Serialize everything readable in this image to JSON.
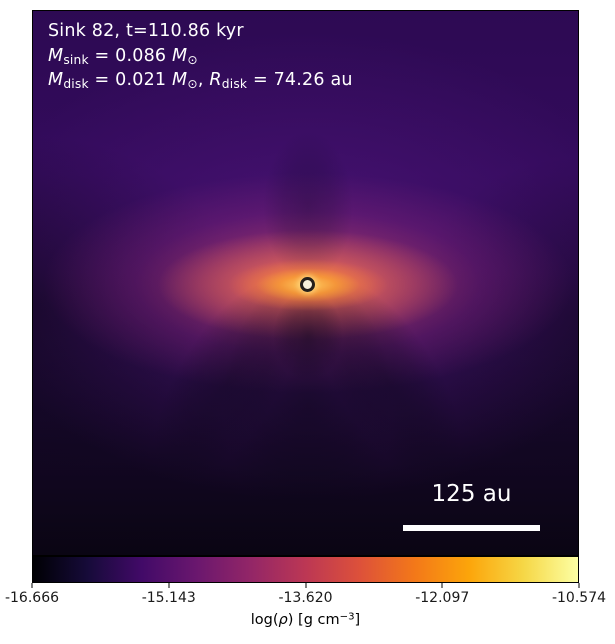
{
  "figure": {
    "background": "#ffffff",
    "kind": "protostellar disk density map with colorbar"
  },
  "map": {
    "annotation": {
      "line1": "Sink 82, t=110.86 kyr",
      "line2": [
        {
          "s": "i",
          "t": "M"
        },
        {
          "s": "sub",
          "t": "sink"
        },
        {
          "s": "n",
          "t": " = 0.086 "
        },
        {
          "s": "i",
          "t": "M"
        },
        {
          "s": "sub",
          "t": "⊙"
        }
      ],
      "line3": [
        {
          "s": "i",
          "t": "M"
        },
        {
          "s": "sub",
          "t": "disk"
        },
        {
          "s": "n",
          "t": " = 0.021 "
        },
        {
          "s": "i",
          "t": "M"
        },
        {
          "s": "sub",
          "t": "⊙"
        },
        {
          "s": "n",
          "t": ",  "
        },
        {
          "s": "i",
          "t": "R"
        },
        {
          "s": "sub",
          "t": "disk"
        },
        {
          "s": "n",
          "t": " = 74.26 au"
        }
      ]
    },
    "scalebar": {
      "label": "125 au"
    },
    "sink_marker": {
      "fill": "#f8f1da",
      "ring": "#24201b"
    }
  },
  "colorbar": {
    "ticks": [
      "-16.666",
      "-15.143",
      "-13.620",
      "-12.097",
      "-10.574"
    ],
    "tick_positions_pct": [
      0,
      25,
      50,
      75,
      100
    ],
    "label": [
      {
        "s": "n",
        "t": "log("
      },
      {
        "s": "i",
        "t": "ρ"
      },
      {
        "s": "n",
        "t": ") [g cm"
      },
      {
        "s": "sup",
        "t": "−3"
      },
      {
        "s": "n",
        "t": "]"
      }
    ],
    "colormap": "inferno",
    "gradient": [
      "#000004",
      "#160b39",
      "#420a68",
      "#6a176e",
      "#932667",
      "#bc3754",
      "#dd513a",
      "#f37819",
      "#fca50a",
      "#f6d746",
      "#fcffa4"
    ]
  },
  "colors": {
    "map_top_violet": "#330b5c",
    "map_bottom_dark": "#0a0513",
    "lobe_orange": "#f5924b",
    "lobe_magenta": "#c3416e",
    "core_yellow": "#ffcd5f",
    "annotation_text": "#ffffff",
    "tick_text": "#1a1a1a"
  },
  "chart_data": {
    "type": "heatmap",
    "title": "",
    "colormap": "inferno",
    "colorbar": {
      "label": "log(ρ) [g cm⁻³]",
      "ticks": [
        -16.666,
        -15.143,
        -13.62,
        -12.097,
        -10.574
      ],
      "range": [
        -16.666,
        -10.574
      ],
      "orientation": "horizontal"
    },
    "annotations": {
      "sink_id": 82,
      "time_kyr": 110.86,
      "M_sink_Msun": 0.086,
      "M_disk_Msun": 0.021,
      "R_disk_au": 74.26
    },
    "scale_bar": {
      "length_au": 125,
      "label": "125 au"
    },
    "description": "Edge-on gas density map around sink particle 82: bright orange-yellow peak at the central sink, horizontally elongated disk emission lobes fading through magenta to violet, dark shadow cones below and faint dark notch above, background darkening toward the bottom of the frame."
  }
}
